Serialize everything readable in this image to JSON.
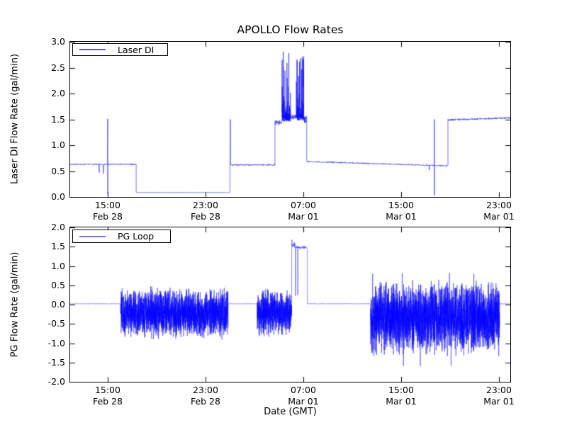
{
  "figure": {
    "title": "APOLLO Flow Rates",
    "xlabel": "Date (GMT)",
    "background": "#ffffff"
  },
  "top_plot": {
    "ylabel": "Laser DI Flow Rate (gal/min)",
    "legend_label": "Laser DI"
  },
  "bottom_plot": {
    "ylabel": "PG Flow Rate (gal/min)",
    "legend_label": "PG Loop"
  },
  "chart_data": [
    {
      "type": "line",
      "title": "APOLLO Flow Rates",
      "ylabel": "Laser DI Flow Rate (gal/min)",
      "series": [
        {
          "name": "Laser DI",
          "color": "#0000ff",
          "alpha": 0.62
        }
      ],
      "x_unit": "hours since Feb 28 00:00 GMT",
      "xlim": [
        11.93,
        47.93
      ],
      "ylim": [
        0.0,
        3.0
      ],
      "yticks": [
        0.0,
        0.5,
        1.0,
        1.5,
        2.0,
        2.5,
        3.0
      ],
      "xticks": [
        {
          "t": 15,
          "time": "15:00",
          "date": "Feb 28"
        },
        {
          "t": 23,
          "time": "23:00",
          "date": "Feb 28"
        },
        {
          "t": 31,
          "time": "07:00",
          "date": "Mar 01"
        },
        {
          "t": 39,
          "time": "15:00",
          "date": "Mar 01"
        },
        {
          "t": 47,
          "time": "23:00",
          "date": "Mar 01"
        }
      ],
      "legend_position": "upper left",
      "grid": false,
      "seed": 7,
      "segments": [
        {
          "kind": "flat",
          "t0": 11.93,
          "t1": 17.33,
          "y": 0.63,
          "noise": 0.012,
          "spikes": [
            {
              "t": 14.3,
              "y": 0.47
            },
            {
              "t": 14.65,
              "y": 0.45
            },
            {
              "t": 15.0,
              "y": 1.51,
              "y2": 0.06
            }
          ]
        },
        {
          "kind": "flat",
          "t0": 17.33,
          "t1": 25.0,
          "y": 0.085,
          "noise": 0.004
        },
        {
          "kind": "flat",
          "t0": 25.0,
          "t1": 28.68,
          "y": 0.62,
          "noise": 0.013,
          "spikes": [
            {
              "t": 25.03,
              "y": 1.5
            }
          ]
        },
        {
          "kind": "flat",
          "t0": 28.68,
          "t1": 29.25,
          "y": 1.43,
          "noise": 0.05
        },
        {
          "kind": "cluster",
          "t0": 29.25,
          "t1": 29.95,
          "base": 1.5,
          "peak": 2.8
        },
        {
          "kind": "flat",
          "t0": 29.95,
          "t1": 30.42,
          "y": 1.55,
          "noise": 0.05
        },
        {
          "kind": "cluster",
          "t0": 30.42,
          "t1": 31.05,
          "base": 1.52,
          "peak": 2.72
        },
        {
          "kind": "flat",
          "t0": 31.05,
          "t1": 31.28,
          "y": 1.5,
          "noise": 0.07
        },
        {
          "kind": "ramp",
          "t0": 31.28,
          "t1": 42.83,
          "y0": 0.685,
          "y1": 0.6,
          "noise": 0.011,
          "spikes": [
            {
              "t": 41.3,
              "y": 0.52
            },
            {
              "t": 41.72,
              "y": 1.5,
              "y2": 0.03
            }
          ]
        },
        {
          "kind": "ramp",
          "t0": 42.83,
          "t1": 47.93,
          "y0": 1.49,
          "y1": 1.53,
          "noise": 0.016
        }
      ]
    },
    {
      "type": "line",
      "xlabel": "Date (GMT)",
      "ylabel": "PG Flow Rate (gal/min)",
      "series": [
        {
          "name": "PG Loop",
          "color": "#0000ff",
          "alpha": 0.5
        }
      ],
      "x_unit": "hours since Feb 28 00:00 GMT",
      "xlim": [
        11.93,
        47.93
      ],
      "ylim": [
        -2.0,
        2.0
      ],
      "yticks": [
        -2.0,
        -1.5,
        -1.0,
        -0.5,
        0.0,
        0.5,
        1.0,
        1.5,
        2.0
      ],
      "xticks": [
        {
          "t": 15,
          "time": "15:00",
          "date": "Feb 28"
        },
        {
          "t": 23,
          "time": "23:00",
          "date": "Feb 28"
        },
        {
          "t": 31,
          "time": "07:00",
          "date": "Mar 01"
        },
        {
          "t": 39,
          "time": "15:00",
          "date": "Mar 01"
        },
        {
          "t": 47,
          "time": "23:00",
          "date": "Mar 01"
        }
      ],
      "legend_position": "upper left",
      "grid": false,
      "seed": 3,
      "segments": [
        {
          "kind": "flat",
          "t0": 11.93,
          "t1": 16.05,
          "y": 0.02,
          "noise": 0.006
        },
        {
          "kind": "band",
          "t0": 16.05,
          "t1": 24.85,
          "hi": 0.48,
          "lo": -0.92
        },
        {
          "kind": "flat",
          "t0": 24.85,
          "t1": 27.23,
          "y": 0.02,
          "noise": 0.006
        },
        {
          "kind": "band",
          "t0": 27.23,
          "t1": 30.05,
          "hi": 0.42,
          "lo": -0.86
        },
        {
          "kind": "flat",
          "t0": 30.05,
          "t1": 30.34,
          "y": 1.55,
          "noise": 0.07,
          "spikes": [
            {
              "t": 30.07,
              "y": 1.68
            }
          ]
        },
        {
          "kind": "flat",
          "t0": 30.36,
          "t1": 31.33,
          "y": 1.48,
          "noise": 0.035,
          "spikes": [
            {
              "t": 30.37,
              "y": 0.22
            },
            {
              "t": 30.55,
              "y": 0.25
            }
          ]
        },
        {
          "kind": "flat",
          "t0": 31.33,
          "t1": 36.5,
          "y": 0.02,
          "noise": 0.006
        },
        {
          "kind": "band",
          "t0": 36.5,
          "t1": 47.05,
          "hi": 0.68,
          "lo": -1.35,
          "extreme": {
            "p": 0.004,
            "hi": 0.85,
            "lo": -1.65
          }
        },
        {
          "kind": "flat",
          "t0": 47.05,
          "t1": 47.93,
          "y": 0.02,
          "noise": 0.006
        }
      ]
    }
  ]
}
